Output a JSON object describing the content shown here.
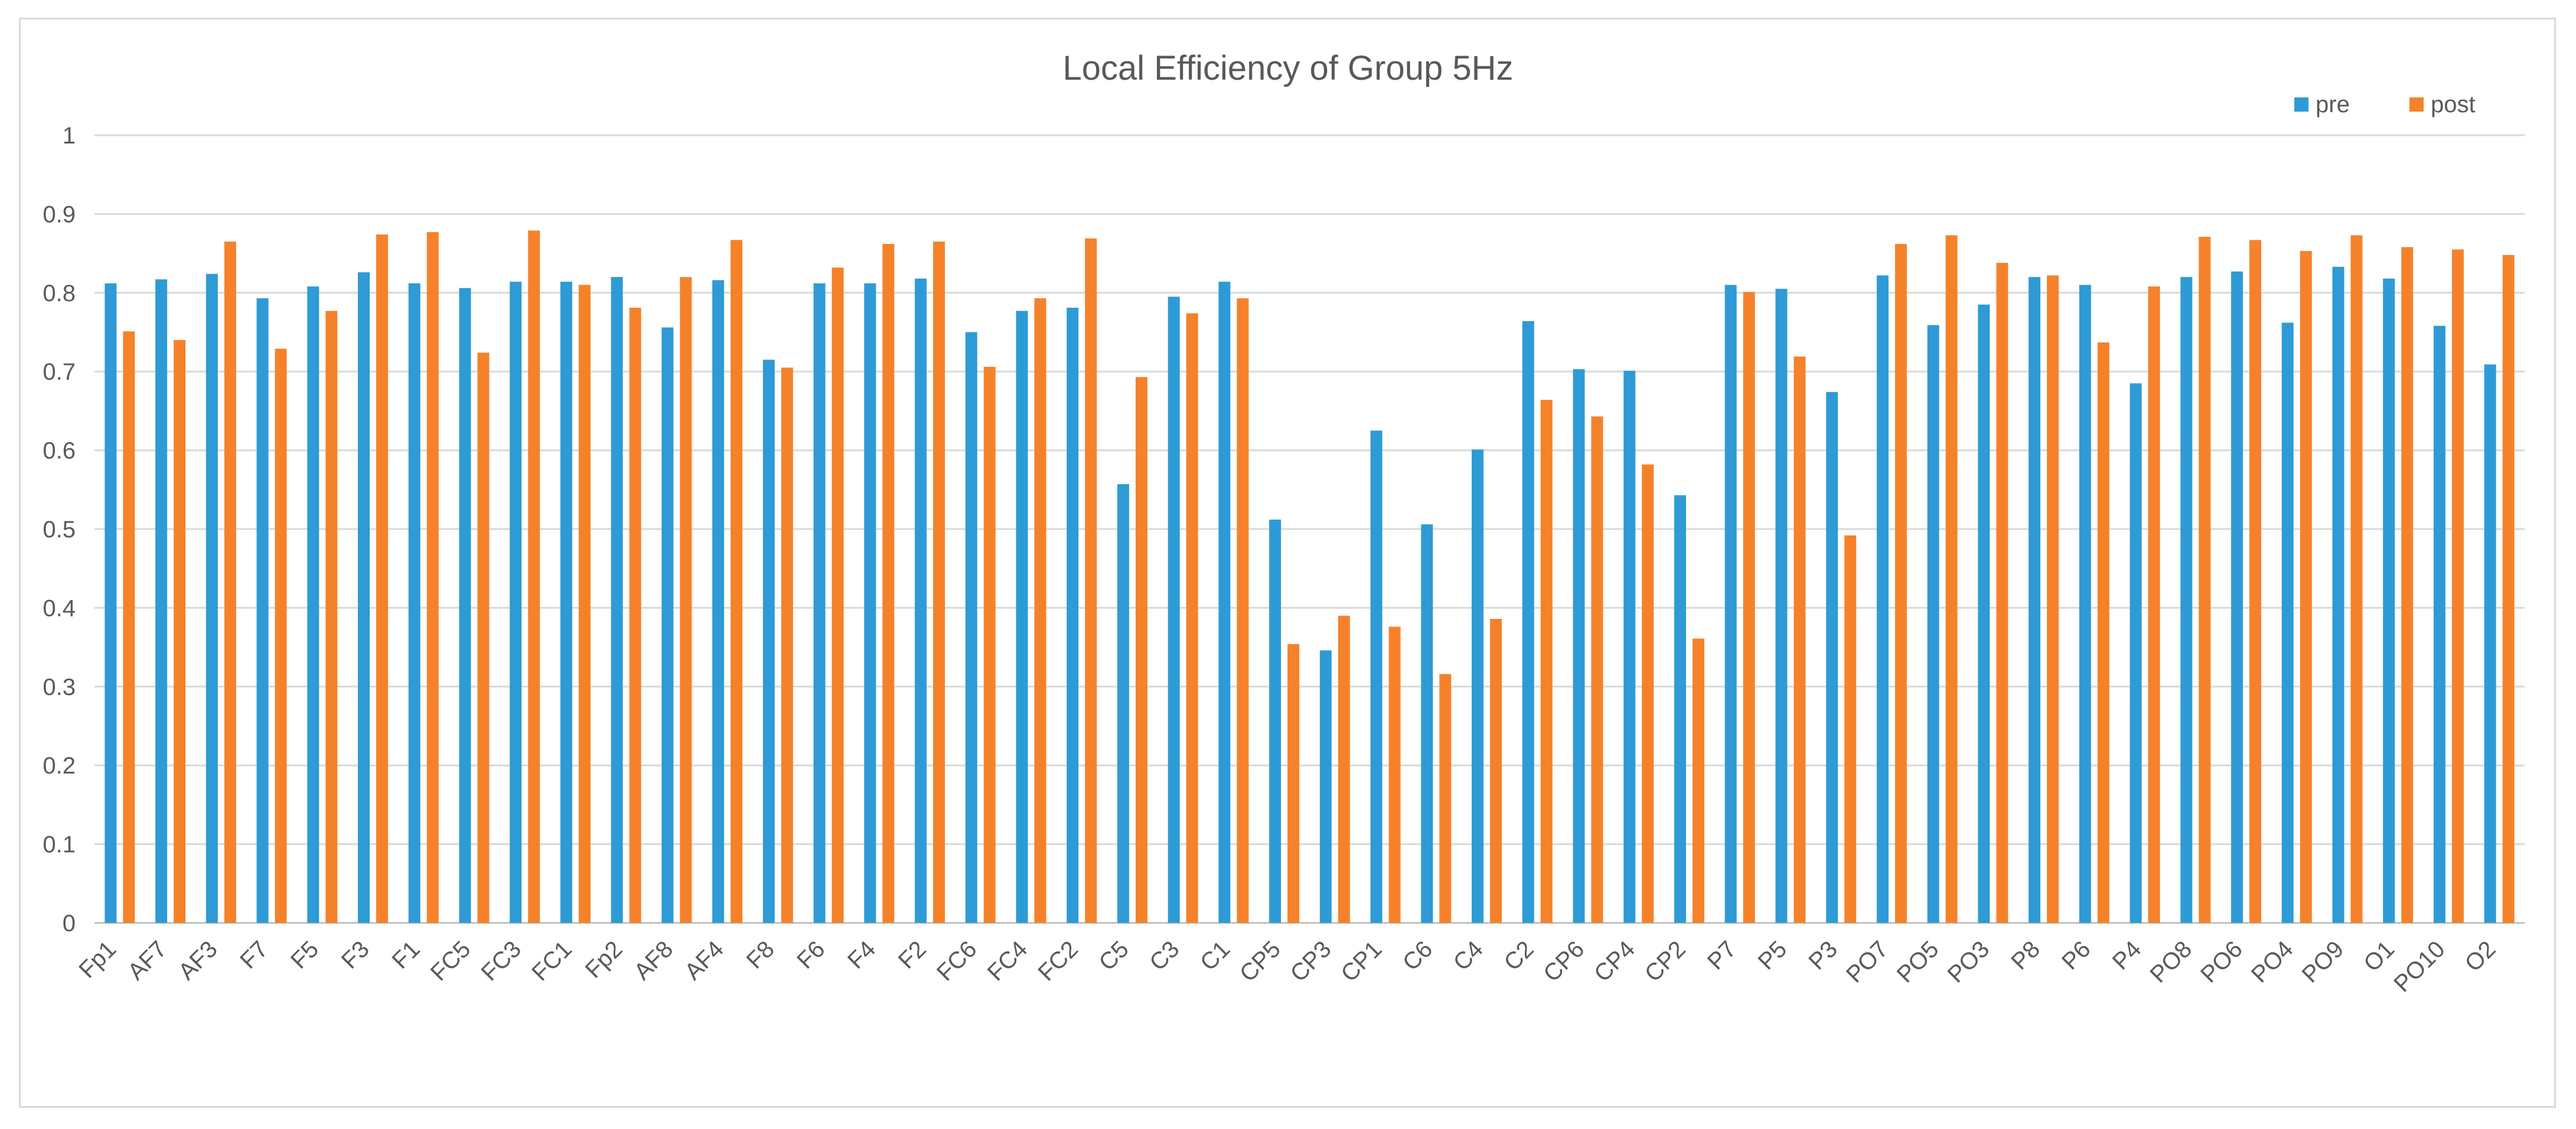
{
  "chart_data": {
    "type": "bar",
    "title": "Local Efficiency of Group 5Hz",
    "xlabel": "",
    "ylabel": "",
    "ylim": [
      0,
      1
    ],
    "yticks": [
      "0",
      "0.1",
      "0.2",
      "0.3",
      "0.4",
      "0.5",
      "0.6",
      "0.7",
      "0.8",
      "0.9",
      "1"
    ],
    "grid": true,
    "legend_position": "top-right",
    "categories": [
      "Fp1",
      "AF7",
      "AF3",
      "F7",
      "F5",
      "F3",
      "F1",
      "FC5",
      "FC3",
      "FC1",
      "Fp2",
      "AF8",
      "AF4",
      "F8",
      "F6",
      "F4",
      "F2",
      "FC6",
      "FC4",
      "FC2",
      "C5",
      "C3",
      "C1",
      "CP5",
      "CP3",
      "CP1",
      "C6",
      "C4",
      "C2",
      "CP6",
      "CP4",
      "CP2",
      "P7",
      "P5",
      "P3",
      "PO7",
      "PO5",
      "PO3",
      "P8",
      "P6",
      "P4",
      "PO8",
      "PO6",
      "PO4",
      "PO9",
      "O1",
      "PO10",
      "O2"
    ],
    "series": [
      {
        "name": "pre",
        "color": "#2e9bd6",
        "values": [
          0.812,
          0.817,
          0.824,
          0.793,
          0.808,
          0.826,
          0.812,
          0.806,
          0.814,
          0.814,
          0.82,
          0.756,
          0.816,
          0.715,
          0.812,
          0.812,
          0.818,
          0.75,
          0.777,
          0.781,
          0.557,
          0.795,
          0.814,
          0.512,
          0.346,
          0.625,
          0.506,
          0.601,
          0.764,
          0.703,
          0.701,
          0.543,
          0.81,
          0.805,
          0.674,
          0.822,
          0.759,
          0.785,
          0.82,
          0.81,
          0.685,
          0.82,
          0.827,
          0.762,
          0.833,
          0.818,
          0.758,
          0.709
        ]
      },
      {
        "name": "post",
        "color": "#f5822a",
        "values": [
          0.751,
          0.74,
          0.865,
          0.729,
          0.777,
          0.874,
          0.877,
          0.724,
          0.879,
          0.81,
          0.781,
          0.82,
          0.867,
          0.705,
          0.832,
          0.862,
          0.865,
          0.706,
          0.793,
          0.869,
          0.693,
          0.774,
          0.793,
          0.354,
          0.39,
          0.376,
          0.316,
          0.386,
          0.664,
          0.643,
          0.582,
          0.361,
          0.801,
          0.719,
          0.492,
          0.862,
          0.873,
          0.838,
          0.822,
          0.737,
          0.808,
          0.871,
          0.867,
          0.853,
          0.873,
          0.858,
          0.855,
          0.848
        ]
      }
    ]
  }
}
